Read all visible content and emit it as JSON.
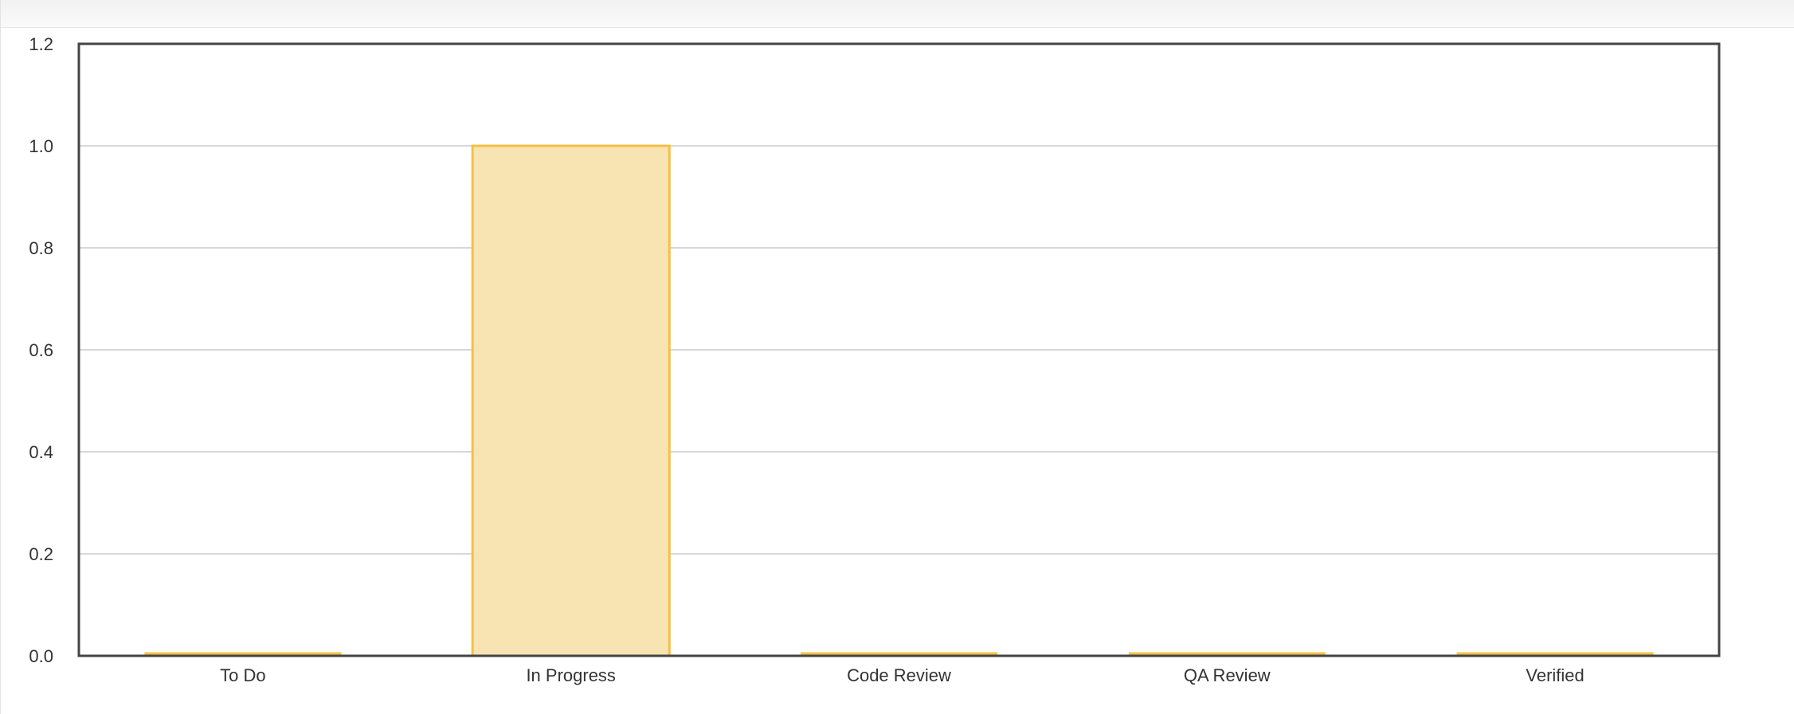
{
  "chart_data": {
    "type": "bar",
    "title": "",
    "xlabel": "",
    "ylabel": "",
    "categories": [
      "To Do",
      "In Progress",
      "Code Review",
      "QA Review",
      "Verified"
    ],
    "values": [
      0,
      1,
      0,
      0,
      0
    ],
    "ylim": [
      0,
      1.2
    ],
    "yticks": [
      "0.0",
      "0.2",
      "0.4",
      "0.6",
      "0.8",
      "1.0",
      "1.2"
    ],
    "grid": true,
    "legend": "none",
    "colors": {
      "bar_fill": "#f8e4b3",
      "bar_stroke": "#f4c045",
      "grid": "#cccccc",
      "frame": "#444444",
      "text": "#333333"
    }
  }
}
